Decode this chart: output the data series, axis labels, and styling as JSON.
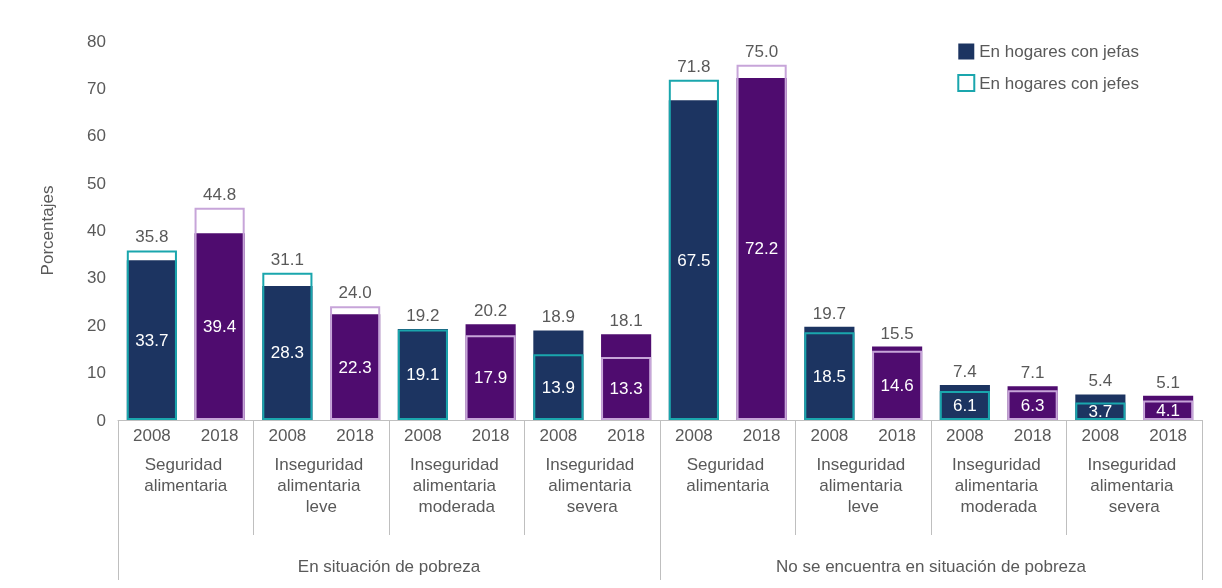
{
  "chart_data": {
    "type": "bar",
    "ylabel": "Porcentajes",
    "categories": [
      "2008",
      "2018",
      "2008",
      "2018",
      "2008",
      "2018",
      "2008",
      "2018",
      "2008",
      "2018",
      "2008",
      "2018",
      "2008",
      "2018",
      "2008",
      "2018"
    ],
    "annotations": [
      "Seguridad alimentaria",
      "Inseguridad alimentaria leve",
      "Inseguridad alimentaria moderada",
      "Inseguridad alimentaria severa",
      "Seguridad alimentaria",
      "Inseguridad alimentaria leve",
      "Inseguridad alimentaria moderada",
      "Inseguridad alimentaria severa",
      "En situación de pobreza",
      "No se encuentra en situación de pobreza"
    ],
    "series": [
      {
        "name": "En hogares con jefas",
        "colors": [
          "#1c3461",
          "#4f0c6f",
          "#1c3461",
          "#4f0c6f",
          "#1c3461",
          "#4f0c6f",
          "#1c3461",
          "#4f0c6f",
          "#1c3461",
          "#4f0c6f",
          "#1c3461",
          "#4f0c6f",
          "#1c3461",
          "#4f0c6f",
          "#1c3461",
          "#4f0c6f"
        ],
        "values": [
          33.7,
          39.4,
          28.3,
          22.3,
          19.2,
          20.2,
          18.9,
          18.1,
          67.5,
          72.2,
          19.7,
          15.5,
          7.4,
          7.1,
          5.4,
          5.1
        ],
        "value_labels": [
          "33.7",
          "39.4",
          "28.3",
          "22.3",
          "19.2",
          "20.2",
          "18.9",
          "18.1",
          "67.5",
          "72.2",
          "19.7",
          "15.5",
          "7.4",
          "7.1",
          "5.4",
          "5.1"
        ]
      },
      {
        "name": "En hogares con jefes",
        "colors": [
          "#1aa6ad",
          "#c7a5d9",
          "#1aa6ad",
          "#c7a5d9",
          "#1aa6ad",
          "#c7a5d9",
          "#1aa6ad",
          "#c7a5d9",
          "#1aa6ad",
          "#c7a5d9",
          "#1aa6ad",
          "#c7a5d9",
          "#1aa6ad",
          "#c7a5d9",
          "#1aa6ad",
          "#c7a5d9"
        ],
        "values": [
          35.8,
          44.8,
          31.1,
          24.0,
          19.1,
          17.9,
          13.9,
          13.3,
          71.8,
          75.0,
          18.5,
          14.6,
          6.1,
          6.3,
          3.7,
          4.1
        ],
        "value_labels": [
          "35.8",
          "44.8",
          "31.1",
          "24.0",
          "19.1",
          "17.9",
          "13.9",
          "13.3",
          "71.8",
          "75.0",
          "18.5",
          "14.6",
          "6.1",
          "6.3",
          "3.7",
          "4.1"
        ]
      }
    ],
    "ylim": [
      0,
      80
    ],
    "yticks": [
      0,
      10,
      20,
      30,
      40,
      50,
      60,
      70,
      80
    ],
    "legend": "top right"
  }
}
